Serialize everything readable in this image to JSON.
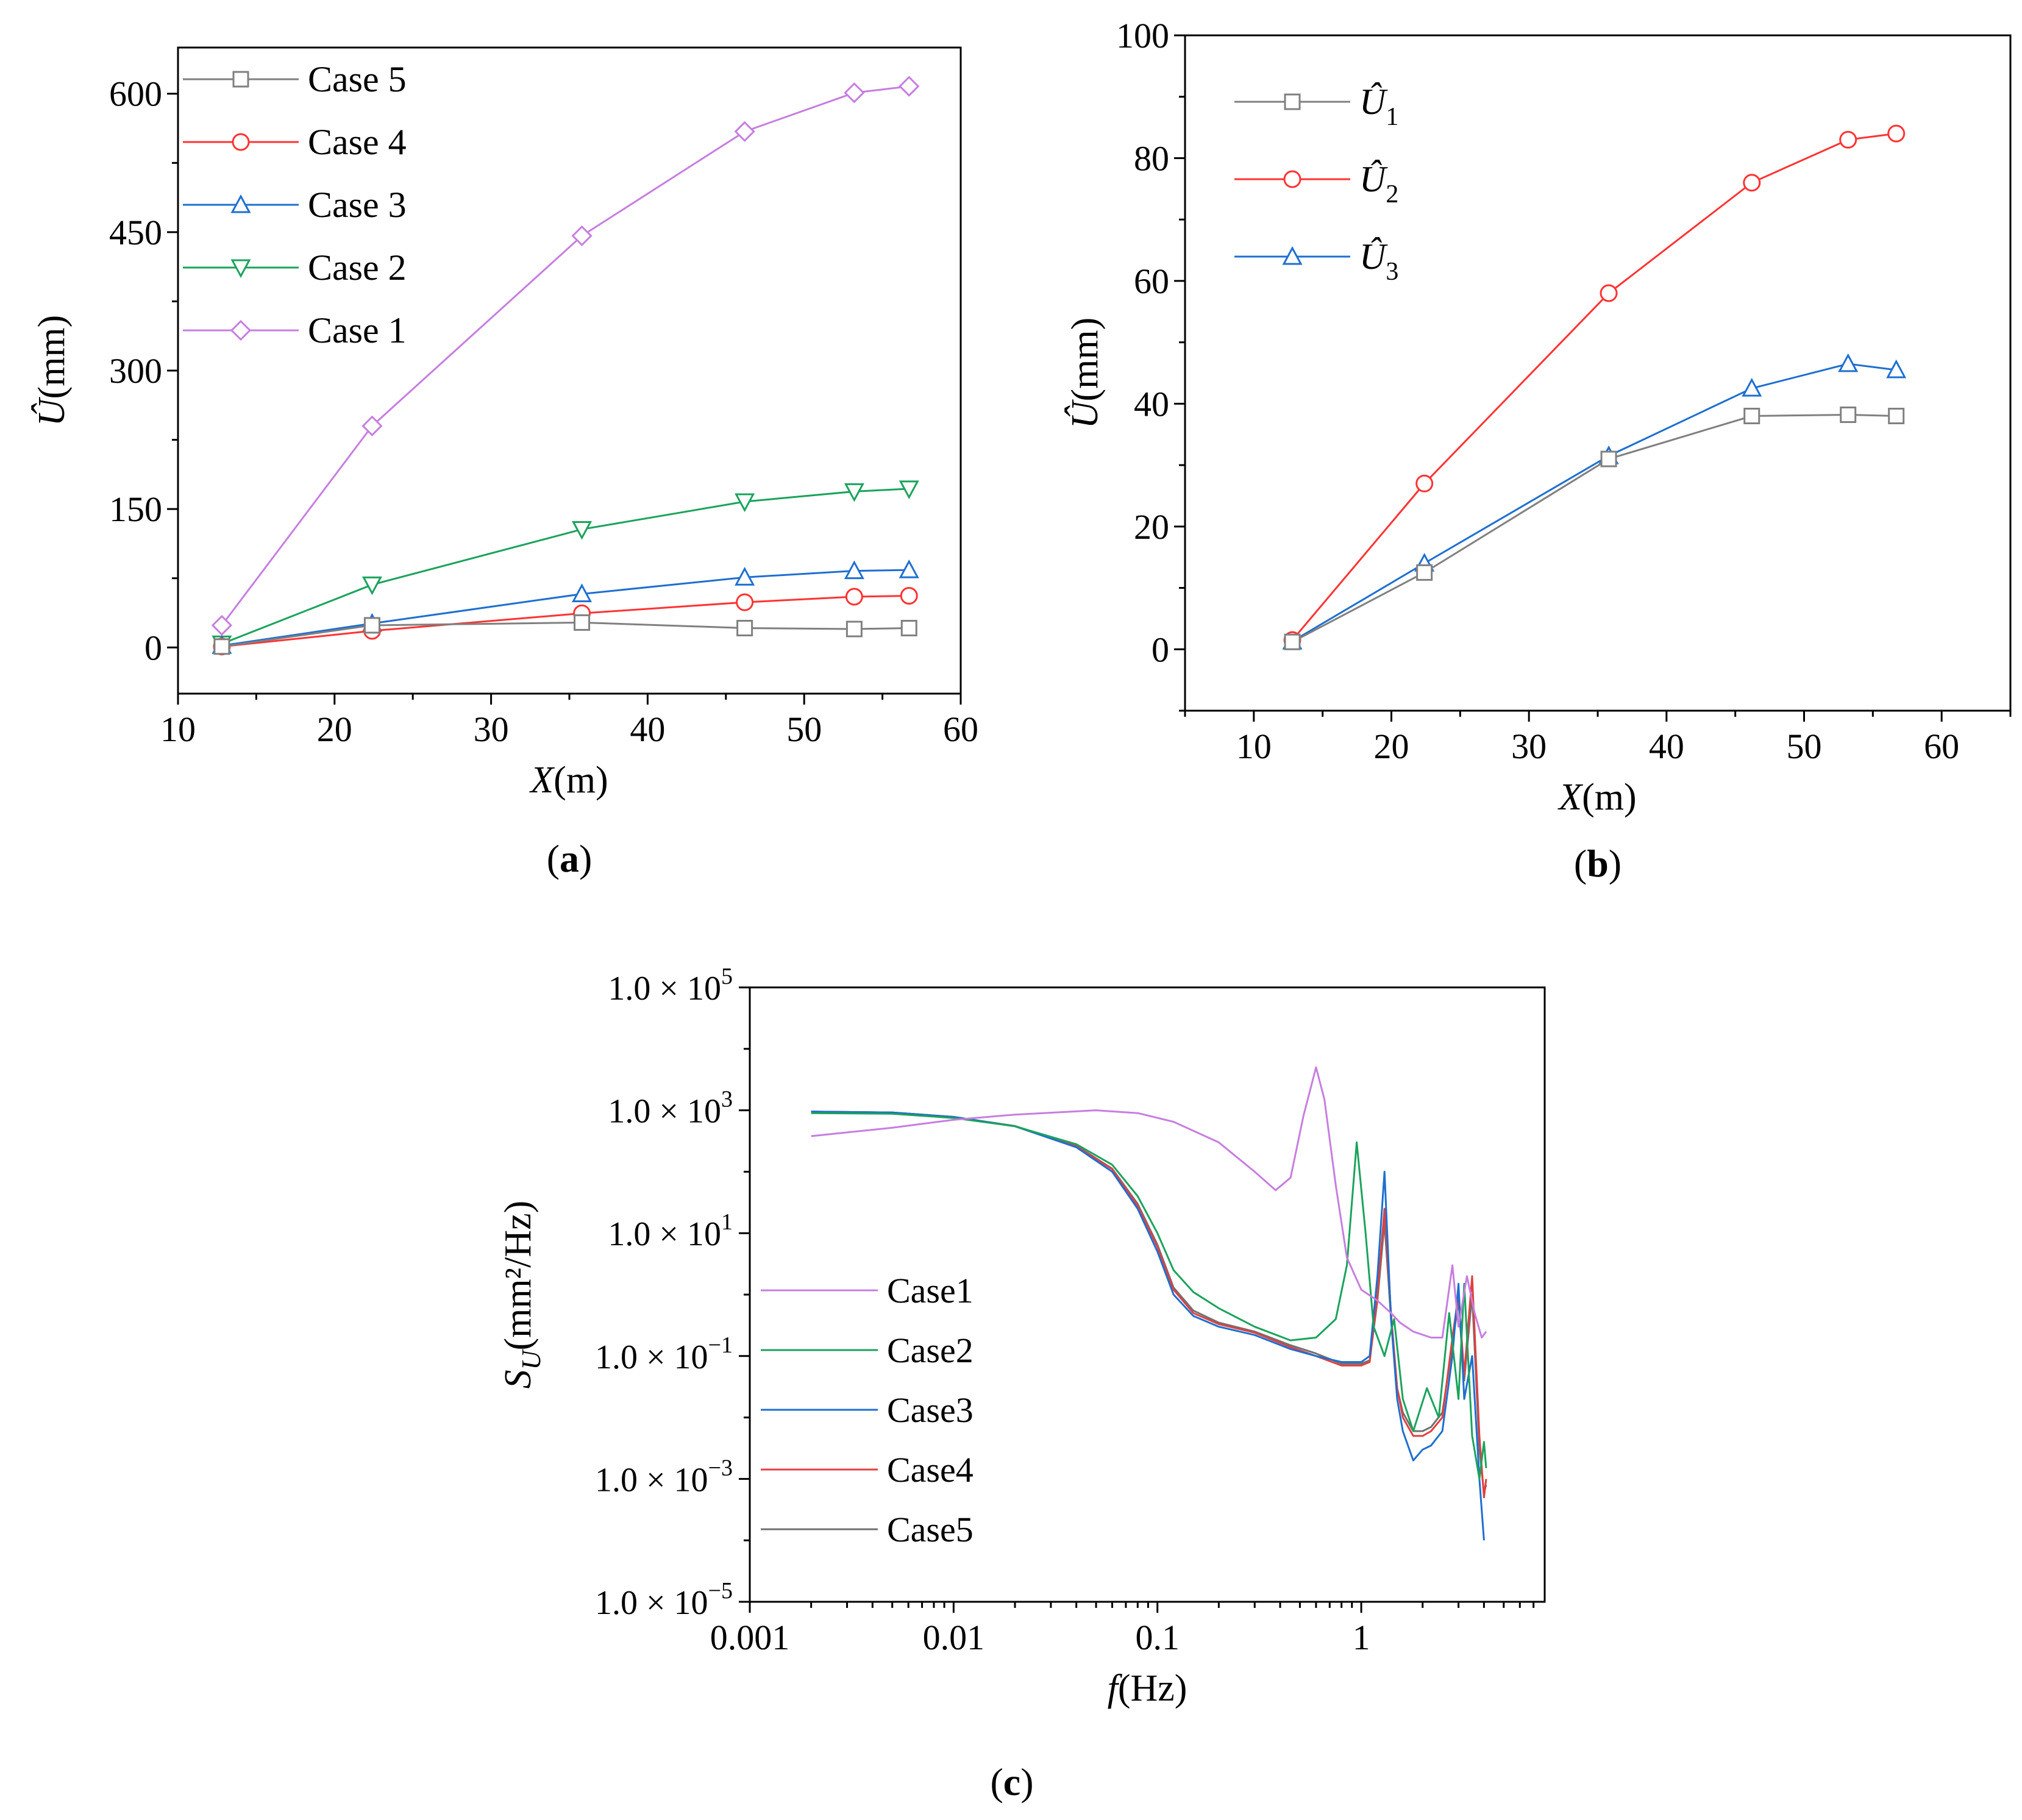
{
  "chart_data": [
    {
      "id": "a",
      "type": "line",
      "panel_label": "a",
      "xlabel_var": "X",
      "xlabel_unit": "(m)",
      "ylabel_var": "Û",
      "ylabel_unit": "(mm)",
      "xlim": [
        10,
        60
      ],
      "ylim": [
        -50,
        650
      ],
      "xticks": [
        10,
        20,
        30,
        40,
        50,
        60
      ],
      "yticks": [
        0,
        150,
        300,
        450,
        600
      ],
      "legend_position": "top-left",
      "x": [
        12.8,
        22.4,
        35.8,
        46.2,
        53.2,
        56.7
      ],
      "series": [
        {
          "name": "Case 5",
          "color": "#808080",
          "marker": "square",
          "values": [
            1,
            24,
            27,
            21,
            20,
            21
          ]
        },
        {
          "name": "Case 4",
          "color": "#ff3333",
          "marker": "circle",
          "values": [
            1,
            18,
            37,
            49,
            55,
            56
          ]
        },
        {
          "name": "Case 3",
          "color": "#1e6fd0",
          "marker": "triangle-up",
          "values": [
            2,
            26,
            58,
            76,
            83,
            84
          ]
        },
        {
          "name": "Case 2",
          "color": "#1aa35c",
          "marker": "triangle-down",
          "values": [
            4,
            68,
            128,
            158,
            169,
            172
          ]
        },
        {
          "name": "Case 1",
          "color": "#c77ee0",
          "marker": "diamond",
          "values": [
            24,
            240,
            446,
            559,
            601,
            608
          ]
        }
      ]
    },
    {
      "id": "b",
      "type": "line",
      "panel_label": "b",
      "xlabel_var": "X",
      "xlabel_unit": "(m)",
      "ylabel_var": "Û",
      "ylabel_unit": "(mm)",
      "xlim": [
        5,
        65
      ],
      "ylim": [
        -10,
        100
      ],
      "xticks": [
        10,
        20,
        30,
        40,
        50,
        60
      ],
      "yticks": [
        0,
        20,
        40,
        60,
        80,
        100
      ],
      "legend_position": "top-left",
      "x": [
        12.8,
        22.4,
        35.8,
        46.2,
        53.2,
        56.7
      ],
      "series": [
        {
          "name": "Û",
          "sub": "1",
          "color": "#808080",
          "marker": "square",
          "values": [
            1.2,
            12.5,
            31,
            38,
            38.2,
            38
          ]
        },
        {
          "name": "Û",
          "sub": "2",
          "color": "#ff3333",
          "marker": "circle",
          "values": [
            1.5,
            27,
            58,
            76,
            83,
            84
          ]
        },
        {
          "name": "Û",
          "sub": "3",
          "color": "#1e6fd0",
          "marker": "triangle-up",
          "values": [
            1.3,
            14,
            31.5,
            42.5,
            46.5,
            45.5
          ]
        }
      ]
    },
    {
      "id": "c",
      "type": "line",
      "panel_label": "c",
      "xscale": "log",
      "yscale": "log",
      "xlabel_var": "f",
      "xlabel_unit": "(Hz)",
      "ylabel_var": "S",
      "ylabel_sub": "U",
      "ylabel_unit": "(mm²/Hz)",
      "xlim_exp": [
        -3,
        0.9
      ],
      "ylim_exp": [
        -5,
        5
      ],
      "xtick_labels": [
        "0.001",
        "0.01",
        "0.1",
        "1"
      ],
      "ytick_mantissa": "1.0 × 10",
      "ytick_exponents": [
        "5",
        "3",
        "1",
        "−1",
        "−3",
        "−5"
      ],
      "legend_position": "bottom-left",
      "series": [
        {
          "name": "Case1",
          "color": "#c77ee0",
          "points": [
            [
              0.002,
              380
            ],
            [
              0.005,
              520
            ],
            [
              0.01,
              700
            ],
            [
              0.02,
              850
            ],
            [
              0.05,
              1000
            ],
            [
              0.08,
              900
            ],
            [
              0.12,
              650
            ],
            [
              0.2,
              300
            ],
            [
              0.3,
              100
            ],
            [
              0.38,
              50
            ],
            [
              0.45,
              80
            ],
            [
              0.52,
              800
            ],
            [
              0.6,
              5000
            ],
            [
              0.66,
              1500
            ],
            [
              0.75,
              60
            ],
            [
              0.85,
              4
            ],
            [
              1.0,
              1.2
            ],
            [
              1.2,
              0.8
            ],
            [
              1.4,
              0.5
            ],
            [
              1.55,
              0.35
            ],
            [
              1.8,
              0.25
            ],
            [
              2.2,
              0.2
            ],
            [
              2.5,
              0.2
            ],
            [
              2.8,
              3
            ],
            [
              3.0,
              0.3
            ],
            [
              3.3,
              2
            ],
            [
              3.6,
              0.5
            ],
            [
              3.9,
              0.2
            ],
            [
              4.1,
              0.25
            ]
          ]
        },
        {
          "name": "Case2",
          "color": "#1aa35c",
          "points": [
            [
              0.002,
              900
            ],
            [
              0.005,
              880
            ],
            [
              0.01,
              750
            ],
            [
              0.02,
              550
            ],
            [
              0.04,
              280
            ],
            [
              0.06,
              130
            ],
            [
              0.08,
              40
            ],
            [
              0.1,
              10
            ],
            [
              0.12,
              2.5
            ],
            [
              0.15,
              1.1
            ],
            [
              0.2,
              0.6
            ],
            [
              0.3,
              0.3
            ],
            [
              0.45,
              0.18
            ],
            [
              0.6,
              0.2
            ],
            [
              0.75,
              0.4
            ],
            [
              0.85,
              3
            ],
            [
              0.95,
              300
            ],
            [
              1.05,
              10
            ],
            [
              1.15,
              0.3
            ],
            [
              1.3,
              0.1
            ],
            [
              1.45,
              0.4
            ],
            [
              1.6,
              0.02
            ],
            [
              1.8,
              0.006
            ],
            [
              2.1,
              0.03
            ],
            [
              2.4,
              0.01
            ],
            [
              2.7,
              0.5
            ],
            [
              3.0,
              0.02
            ],
            [
              3.2,
              1.5
            ],
            [
              3.5,
              0.005
            ],
            [
              3.8,
              0.001
            ],
            [
              4.0,
              0.004
            ],
            [
              4.1,
              0.0015
            ]
          ]
        },
        {
          "name": "Case3",
          "color": "#1e6fd0",
          "points": [
            [
              0.002,
              950
            ],
            [
              0.005,
              920
            ],
            [
              0.01,
              780
            ],
            [
              0.02,
              550
            ],
            [
              0.04,
              250
            ],
            [
              0.06,
              100
            ],
            [
              0.08,
              25
            ],
            [
              0.1,
              5
            ],
            [
              0.12,
              1
            ],
            [
              0.15,
              0.45
            ],
            [
              0.2,
              0.3
            ],
            [
              0.3,
              0.22
            ],
            [
              0.45,
              0.13
            ],
            [
              0.6,
              0.1
            ],
            [
              0.8,
              0.08
            ],
            [
              1.0,
              0.08
            ],
            [
              1.1,
              0.1
            ],
            [
              1.2,
              2
            ],
            [
              1.3,
              100
            ],
            [
              1.4,
              0.4
            ],
            [
              1.5,
              0.02
            ],
            [
              1.6,
              0.006
            ],
            [
              1.8,
              0.002
            ],
            [
              2.0,
              0.003
            ],
            [
              2.2,
              0.0035
            ],
            [
              2.5,
              0.006
            ],
            [
              2.8,
              0.1
            ],
            [
              3.0,
              1.5
            ],
            [
              3.2,
              0.02
            ],
            [
              3.5,
              0.1
            ],
            [
              3.8,
              0.001
            ],
            [
              4.0,
              0.0001
            ]
          ]
        },
        {
          "name": "Case4",
          "color": "#e04040",
          "points": [
            [
              0.002,
              950
            ],
            [
              0.005,
              920
            ],
            [
              0.01,
              780
            ],
            [
              0.02,
              550
            ],
            [
              0.04,
              260
            ],
            [
              0.06,
              110
            ],
            [
              0.08,
              28
            ],
            [
              0.1,
              6
            ],
            [
              0.12,
              1.2
            ],
            [
              0.15,
              0.5
            ],
            [
              0.2,
              0.33
            ],
            [
              0.3,
              0.24
            ],
            [
              0.45,
              0.14
            ],
            [
              0.6,
              0.1
            ],
            [
              0.8,
              0.07
            ],
            [
              1.0,
              0.07
            ],
            [
              1.1,
              0.08
            ],
            [
              1.2,
              1
            ],
            [
              1.3,
              25
            ],
            [
              1.4,
              0.5
            ],
            [
              1.5,
              0.03
            ],
            [
              1.6,
              0.01
            ],
            [
              1.8,
              0.005
            ],
            [
              2.0,
              0.005
            ],
            [
              2.2,
              0.006
            ],
            [
              2.5,
              0.01
            ],
            [
              2.8,
              0.2
            ],
            [
              3.0,
              1
            ],
            [
              3.2,
              0.05
            ],
            [
              3.5,
              2
            ],
            [
              3.8,
              0.005
            ],
            [
              4.0,
              0.0005
            ],
            [
              4.1,
              0.001
            ]
          ]
        },
        {
          "name": "Case5",
          "color": "#707070",
          "points": [
            [
              0.002,
              950
            ],
            [
              0.005,
              920
            ],
            [
              0.01,
              780
            ],
            [
              0.02,
              555
            ],
            [
              0.04,
              265
            ],
            [
              0.06,
              112
            ],
            [
              0.08,
              30
            ],
            [
              0.1,
              6.5
            ],
            [
              0.12,
              1.3
            ],
            [
              0.15,
              0.55
            ],
            [
              0.2,
              0.35
            ],
            [
              0.3,
              0.25
            ],
            [
              0.45,
              0.15
            ],
            [
              0.6,
              0.11
            ],
            [
              0.8,
              0.075
            ],
            [
              1.0,
              0.075
            ],
            [
              1.1,
              0.085
            ],
            [
              1.2,
              0.8
            ],
            [
              1.3,
              15
            ],
            [
              1.4,
              0.4
            ],
            [
              1.5,
              0.03
            ],
            [
              1.6,
              0.012
            ],
            [
              1.8,
              0.006
            ],
            [
              2.0,
              0.006
            ],
            [
              2.2,
              0.007
            ],
            [
              2.5,
              0.012
            ],
            [
              2.8,
              0.15
            ],
            [
              3.0,
              0.8
            ],
            [
              3.2,
              0.04
            ],
            [
              3.5,
              1
            ],
            [
              3.8,
              0.003
            ],
            [
              4.0,
              0.0006
            ],
            [
              4.1,
              0.0008
            ]
          ]
        }
      ]
    }
  ]
}
